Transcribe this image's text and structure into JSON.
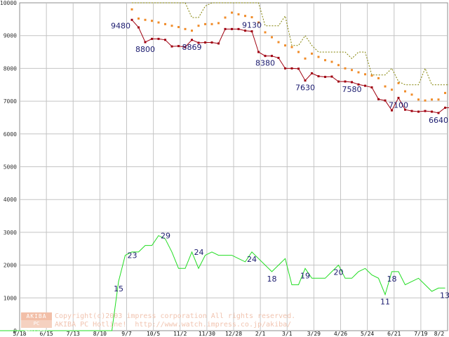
{
  "chart_data": {
    "type": "line",
    "ylim": [
      0,
      10000
    ],
    "yticks": [
      "0",
      "1000",
      "2000",
      "3000",
      "4000",
      "5000",
      "6000",
      "7000",
      "8000",
      "9000",
      "10000"
    ],
    "xticks": [
      "5/18",
      "6/15",
      "7/13",
      "8/10",
      "9/7",
      "10/5",
      "11/2",
      "11/30",
      "12/28",
      "2/1",
      "3/1",
      "3/29",
      "4/26",
      "5/24",
      "6/21",
      "7/19",
      "8/2"
    ],
    "grid": true,
    "colors": {
      "price_min": "#a00010",
      "price_avg": "#f08c2a",
      "price_max": "#808000",
      "shops": "#22dd22",
      "grid": "#c4c4c4",
      "labels": "#1a1a6e"
    },
    "series": [
      {
        "key": "price_min",
        "style": "line-markers",
        "points": [
          [
            0,
            9480
          ],
          [
            1,
            9250
          ],
          [
            2,
            8800
          ],
          [
            3,
            8900
          ],
          [
            4,
            8900
          ],
          [
            5,
            8870
          ],
          [
            6,
            8670
          ],
          [
            7,
            8680
          ],
          [
            8,
            8650
          ],
          [
            9,
            8869
          ],
          [
            10,
            8780
          ],
          [
            11,
            8790
          ],
          [
            12,
            8790
          ],
          [
            13,
            8760
          ],
          [
            14,
            9200
          ],
          [
            15,
            9200
          ],
          [
            16,
            9200
          ],
          [
            17,
            9150
          ],
          [
            18,
            9130
          ],
          [
            19,
            8500
          ],
          [
            20,
            8380
          ],
          [
            21,
            8380
          ],
          [
            22,
            8320
          ],
          [
            23,
            8000
          ],
          [
            24,
            8000
          ],
          [
            25,
            7990
          ],
          [
            26,
            7630
          ],
          [
            27,
            7850
          ],
          [
            28,
            7760
          ],
          [
            29,
            7740
          ],
          [
            30,
            7750
          ],
          [
            31,
            7600
          ],
          [
            32,
            7600
          ],
          [
            33,
            7580
          ],
          [
            34,
            7510
          ],
          [
            35,
            7470
          ],
          [
            36,
            7420
          ],
          [
            37,
            7060
          ],
          [
            38,
            7020
          ],
          [
            39,
            6720
          ],
          [
            40,
            7100
          ],
          [
            41,
            6740
          ],
          [
            42,
            6700
          ],
          [
            43,
            6680
          ],
          [
            44,
            6700
          ],
          [
            45,
            6680
          ],
          [
            46,
            6640
          ],
          [
            47,
            6800
          ],
          [
            48,
            6800
          ],
          [
            49,
            6980
          ]
        ]
      },
      {
        "key": "price_avg",
        "style": "dots",
        "points": [
          [
            0,
            9800
          ],
          [
            1,
            9520
          ],
          [
            2,
            9480
          ],
          [
            3,
            9450
          ],
          [
            4,
            9400
          ],
          [
            5,
            9350
          ],
          [
            6,
            9300
          ],
          [
            7,
            9260
          ],
          [
            8,
            9200
          ],
          [
            9,
            9150
          ],
          [
            10,
            9300
          ],
          [
            11,
            9350
          ],
          [
            12,
            9350
          ],
          [
            13,
            9380
          ],
          [
            14,
            9550
          ],
          [
            15,
            9700
          ],
          [
            16,
            9650
          ],
          [
            17,
            9600
          ],
          [
            18,
            9560
          ],
          [
            19,
            9400
          ],
          [
            20,
            9100
          ],
          [
            21,
            8950
          ],
          [
            22,
            8800
          ],
          [
            23,
            8700
          ],
          [
            24,
            8650
          ],
          [
            25,
            8500
          ],
          [
            26,
            8300
          ],
          [
            27,
            8450
          ],
          [
            28,
            8350
          ],
          [
            29,
            8250
          ],
          [
            30,
            8200
          ],
          [
            31,
            8100
          ],
          [
            32,
            8000
          ],
          [
            33,
            7950
          ],
          [
            34,
            7880
          ],
          [
            35,
            7820
          ],
          [
            36,
            7780
          ],
          [
            37,
            7700
          ],
          [
            38,
            7450
          ],
          [
            39,
            7350
          ],
          [
            40,
            7550
          ],
          [
            41,
            7300
          ],
          [
            42,
            7200
          ],
          [
            43,
            7050
          ],
          [
            44,
            7020
          ],
          [
            45,
            7050
          ],
          [
            46,
            7050
          ],
          [
            47,
            7250
          ],
          [
            48,
            7250
          ],
          [
            49,
            7250
          ]
        ]
      },
      {
        "key": "price_max",
        "style": "dashed",
        "points": [
          [
            0,
            10000
          ],
          [
            1,
            10000
          ],
          [
            2,
            10000
          ],
          [
            3,
            10000
          ],
          [
            4,
            10000
          ],
          [
            5,
            10000
          ],
          [
            6,
            10000
          ],
          [
            7,
            10000
          ],
          [
            8,
            10000
          ],
          [
            9,
            9550
          ],
          [
            10,
            9550
          ],
          [
            11,
            9900
          ],
          [
            12,
            10000
          ],
          [
            13,
            10000
          ],
          [
            14,
            10000
          ],
          [
            15,
            10000
          ],
          [
            16,
            10000
          ],
          [
            17,
            10000
          ],
          [
            18,
            10000
          ],
          [
            19,
            10000
          ],
          [
            20,
            9300
          ],
          [
            21,
            9300
          ],
          [
            22,
            9300
          ],
          [
            23,
            9600
          ],
          [
            24,
            8700
          ],
          [
            25,
            8700
          ],
          [
            26,
            9000
          ],
          [
            27,
            8700
          ],
          [
            28,
            8500
          ],
          [
            29,
            8500
          ],
          [
            30,
            8500
          ],
          [
            31,
            8500
          ],
          [
            32,
            8500
          ],
          [
            33,
            8300
          ],
          [
            34,
            8500
          ],
          [
            35,
            8500
          ],
          [
            36,
            7800
          ],
          [
            37,
            7800
          ],
          [
            38,
            7800
          ],
          [
            39,
            8000
          ],
          [
            40,
            7600
          ],
          [
            41,
            7500
          ],
          [
            42,
            7500
          ],
          [
            43,
            7500
          ],
          [
            44,
            8000
          ],
          [
            45,
            7500
          ],
          [
            46,
            7500
          ],
          [
            47,
            7500
          ],
          [
            48,
            7500
          ],
          [
            49,
            7500
          ]
        ]
      },
      {
        "key": "shops",
        "style": "line",
        "points": [
          [
            -38,
            0
          ],
          [
            -30,
            0
          ],
          [
            -20,
            0
          ],
          [
            -10,
            0
          ],
          [
            -3,
            0
          ],
          [
            -2,
            1500
          ],
          [
            -1,
            2300
          ],
          [
            0,
            2400
          ],
          [
            1,
            2400
          ],
          [
            2,
            2600
          ],
          [
            3,
            2600
          ],
          [
            4,
            2900
          ],
          [
            5,
            2800
          ],
          [
            6,
            2400
          ],
          [
            7,
            1900
          ],
          [
            8,
            1900
          ],
          [
            9,
            2400
          ],
          [
            10,
            1900
          ],
          [
            11,
            2300
          ],
          [
            12,
            2400
          ],
          [
            13,
            2300
          ],
          [
            14,
            2300
          ],
          [
            15,
            2300
          ],
          [
            16,
            2200
          ],
          [
            17,
            2100
          ],
          [
            18,
            2400
          ],
          [
            19,
            2200
          ],
          [
            20,
            2000
          ],
          [
            21,
            1800
          ],
          [
            22,
            2000
          ],
          [
            23,
            2200
          ],
          [
            24,
            1400
          ],
          [
            25,
            1400
          ],
          [
            26,
            1900
          ],
          [
            27,
            1600
          ],
          [
            28,
            1600
          ],
          [
            29,
            1600
          ],
          [
            30,
            1800
          ],
          [
            31,
            2000
          ],
          [
            32,
            1600
          ],
          [
            33,
            1600
          ],
          [
            34,
            1800
          ],
          [
            35,
            1900
          ],
          [
            36,
            1700
          ],
          [
            37,
            1600
          ],
          [
            38,
            1100
          ],
          [
            39,
            1800
          ],
          [
            40,
            1800
          ],
          [
            41,
            1400
          ],
          [
            42,
            1500
          ],
          [
            43,
            1600
          ],
          [
            44,
            1400
          ],
          [
            45,
            1200
          ],
          [
            46,
            1300
          ],
          [
            47,
            1300
          ]
        ]
      }
    ],
    "data_labels": [
      {
        "text": "9480",
        "x": 0,
        "y": 9480,
        "anchor": "below-left"
      },
      {
        "text": "8800",
        "x": 2,
        "y": 8800,
        "anchor": "below"
      },
      {
        "text": "8869",
        "x": 9,
        "y": 8869,
        "anchor": "below"
      },
      {
        "text": "9130",
        "x": 18,
        "y": 9130,
        "anchor": "above"
      },
      {
        "text": "8380",
        "x": 20,
        "y": 8380,
        "anchor": "below"
      },
      {
        "text": "7630",
        "x": 26,
        "y": 7630,
        "anchor": "below"
      },
      {
        "text": "7580",
        "x": 33,
        "y": 7580,
        "anchor": "below"
      },
      {
        "text": "7100",
        "x": 40,
        "y": 7100,
        "anchor": "below"
      },
      {
        "text": "6640",
        "x": 46,
        "y": 6640,
        "anchor": "below"
      },
      {
        "text": "15",
        "x": -2,
        "y": 1500,
        "anchor": "below"
      },
      {
        "text": "23",
        "x": -1,
        "y": 2300,
        "anchor": "right"
      },
      {
        "text": "29",
        "x": 4,
        "y": 2900,
        "anchor": "right"
      },
      {
        "text": "24",
        "x": 9,
        "y": 2400,
        "anchor": "right"
      },
      {
        "text": "24",
        "x": 18,
        "y": 2400,
        "anchor": "below"
      },
      {
        "text": "18",
        "x": 21,
        "y": 1800,
        "anchor": "below"
      },
      {
        "text": "19",
        "x": 26,
        "y": 1900,
        "anchor": "below"
      },
      {
        "text": "20",
        "x": 31,
        "y": 2000,
        "anchor": "below"
      },
      {
        "text": "11",
        "x": 38,
        "y": 1100,
        "anchor": "below"
      },
      {
        "text": "18",
        "x": 39,
        "y": 1800,
        "anchor": "below"
      },
      {
        "text": "13",
        "x": 47,
        "y": 1300,
        "anchor": "below"
      }
    ]
  },
  "watermark": {
    "badge_top": "AKIBA",
    "badge_bottom": "PC Hotline!",
    "line1": "Copyright(c)2003 impress corporation All rights reserved.",
    "line2": "AKIBA PC Hotline!  http://www.watch.impress.co.jp/akiba/"
  }
}
